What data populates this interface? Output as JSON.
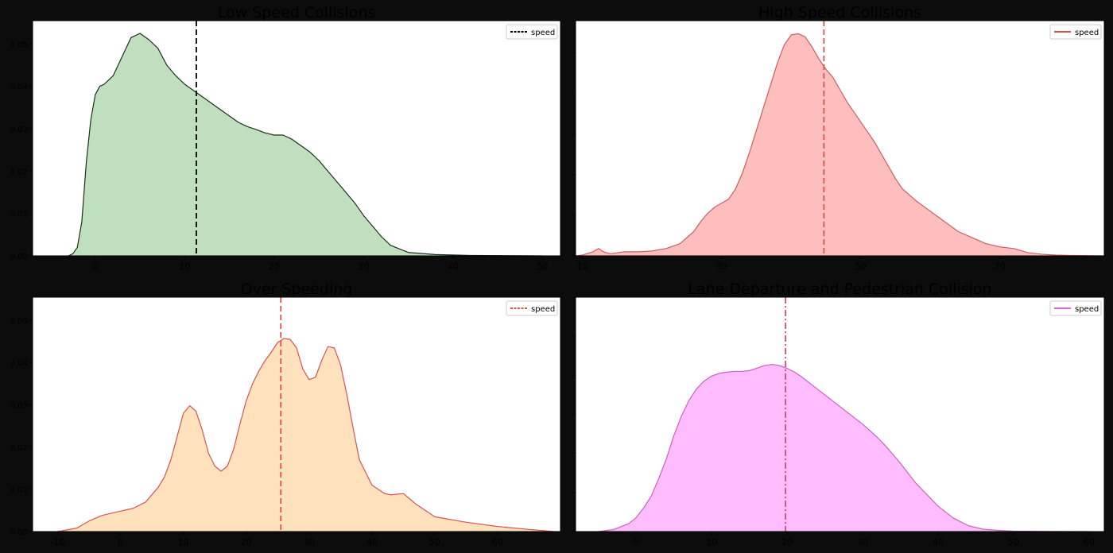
{
  "figure": {
    "background": "#0b0c0b",
    "text_color": "#000000"
  },
  "chart_data": [
    {
      "type": "area",
      "title": "Low Speed Collisions",
      "xlabel": "",
      "ylabel": "",
      "xlim": [
        -7,
        52
      ],
      "ylim": [
        0,
        0.0555
      ],
      "xticks": [
        0,
        10,
        20,
        30,
        40,
        50
      ],
      "yticks": [
        0.0,
        0.01,
        0.02,
        0.03,
        0.04,
        0.05
      ],
      "ytick_labels": [
        "0.00",
        "0.01",
        "0.02",
        "0.03",
        "0.04",
        "0.05"
      ],
      "grid": false,
      "legend": {
        "position": "top-right",
        "entries": [
          {
            "label": "speed",
            "style": "dashed",
            "color": "#000000"
          }
        ]
      },
      "vline": {
        "x": 11.3,
        "color": "#000000",
        "style": "dashed"
      },
      "fill_color": "#bfdfbf",
      "line_color": "#1d2e1d",
      "series": [
        {
          "x": [
            -3,
            -2.5,
            -2,
            -1.5,
            -1,
            -0.5,
            0,
            0.5,
            1,
            2,
            3,
            4,
            5,
            6,
            7,
            8,
            9,
            10,
            11,
            12,
            13,
            14,
            15,
            16,
            17,
            18,
            19,
            20,
            21,
            22,
            23,
            24,
            25,
            26,
            27,
            28,
            29,
            30,
            31,
            32,
            33,
            35,
            38,
            42,
            46,
            50
          ],
          "y": [
            0,
            0.0005,
            0.002,
            0.008,
            0.022,
            0.032,
            0.038,
            0.04,
            0.0405,
            0.0425,
            0.047,
            0.0515,
            0.0525,
            0.051,
            0.049,
            0.045,
            0.0425,
            0.0405,
            0.039,
            0.0375,
            0.036,
            0.0345,
            0.033,
            0.0315,
            0.0305,
            0.0298,
            0.029,
            0.0285,
            0.0285,
            0.0275,
            0.026,
            0.0245,
            0.0225,
            0.02,
            0.0175,
            0.015,
            0.0125,
            0.0095,
            0.007,
            0.0045,
            0.0025,
            0.0008,
            0.0003,
            0.0001,
            5e-05,
            0
          ]
        }
      ]
    },
    {
      "type": "area",
      "title": "High Speed Collisions",
      "xlabel": "",
      "ylabel": "",
      "xlim": [
        9,
        85
      ],
      "ylim": [
        0,
        0.058
      ],
      "xticks": [
        10,
        30,
        50,
        70,
        90
      ],
      "yticks": [
        0.0,
        0.01,
        0.02,
        0.03,
        0.04,
        0.05
      ],
      "ytick_labels": [
        "",
        "",
        "",
        "",
        "",
        ""
      ],
      "grid": false,
      "legend": {
        "position": "top-right",
        "entries": [
          {
            "label": "speed",
            "style": "solid",
            "color": "#d9534f"
          }
        ]
      },
      "vline": {
        "x": 44.7,
        "color": "#d9534f",
        "style": "dashed"
      },
      "fill_color": "#ffbebe",
      "line_color": "#cc5f5f",
      "series": [
        {
          "x": [
            9,
            10,
            11.5,
            12.3,
            13,
            14,
            16,
            18,
            20,
            22,
            24,
            26,
            27,
            28,
            29,
            30,
            31,
            32,
            33,
            34,
            35,
            36,
            37,
            38,
            39,
            40,
            41,
            42,
            43,
            44,
            45,
            46,
            47,
            48,
            49,
            50,
            51,
            52,
            53,
            54,
            55,
            56,
            58,
            60,
            62,
            64,
            66,
            68,
            70,
            72,
            74,
            76,
            78,
            80,
            85
          ],
          "y": [
            0,
            0.0002,
            0.001,
            0.0018,
            0.001,
            0.0005,
            0.001,
            0.001,
            0.0012,
            0.0018,
            0.003,
            0.006,
            0.0085,
            0.0105,
            0.012,
            0.013,
            0.014,
            0.0165,
            0.0205,
            0.0255,
            0.031,
            0.0365,
            0.042,
            0.0475,
            0.052,
            0.0545,
            0.0548,
            0.054,
            0.0515,
            0.0485,
            0.046,
            0.044,
            0.041,
            0.038,
            0.0355,
            0.033,
            0.0305,
            0.028,
            0.025,
            0.022,
            0.019,
            0.0165,
            0.0135,
            0.011,
            0.0085,
            0.006,
            0.0045,
            0.003,
            0.0022,
            0.0018,
            0.0008,
            0.0004,
            0.0002,
            0.0001,
            0
          ]
        }
      ]
    },
    {
      "type": "area",
      "title": "Over Speeding",
      "xlabel": "",
      "ylabel": "",
      "xlim": [
        -14,
        70
      ],
      "ylim": [
        0,
        0.0555
      ],
      "xticks": [
        -10,
        0,
        10,
        20,
        30,
        40,
        50,
        60
      ],
      "yticks": [
        0.0,
        0.01,
        0.02,
        0.03,
        0.04,
        0.05
      ],
      "ytick_labels": [
        "0.00",
        "0.01",
        "0.02",
        "0.03",
        "0.04",
        "0.05"
      ],
      "grid": false,
      "legend": {
        "position": "top-right",
        "entries": [
          {
            "label": "speed",
            "style": "dashed",
            "color": "#d9534f"
          }
        ]
      },
      "vline": {
        "x": 25.5,
        "color": "#d9534f",
        "style": "dashed"
      },
      "fill_color": "#ffe2bd",
      "line_color": "#d9534f",
      "series": [
        {
          "x": [
            -10,
            -7,
            -5,
            -3,
            -1,
            2,
            4,
            6,
            7,
            8,
            9,
            10,
            11,
            12,
            13,
            14,
            15,
            16,
            17,
            18,
            19,
            20,
            21,
            22,
            23,
            24,
            25,
            26,
            27,
            28,
            29,
            30,
            31,
            32,
            33,
            34,
            35,
            36,
            37,
            38,
            40,
            42,
            43,
            45,
            47,
            50,
            55,
            60,
            65,
            69
          ],
          "y": [
            0,
            0.0008,
            0.0025,
            0.0038,
            0.0045,
            0.0055,
            0.007,
            0.0105,
            0.013,
            0.017,
            0.0225,
            0.028,
            0.0298,
            0.0285,
            0.024,
            0.0185,
            0.0155,
            0.0143,
            0.0155,
            0.0195,
            0.0255,
            0.031,
            0.035,
            0.038,
            0.0405,
            0.0425,
            0.0448,
            0.0457,
            0.0455,
            0.0435,
            0.0385,
            0.036,
            0.0365,
            0.0405,
            0.0438,
            0.0435,
            0.0395,
            0.0325,
            0.0245,
            0.017,
            0.011,
            0.009,
            0.0087,
            0.009,
            0.0065,
            0.0035,
            0.0022,
            0.0012,
            0.0005,
            0
          ]
        }
      ]
    },
    {
      "type": "area",
      "title": "Lane Departure and Pedestrian Collision",
      "xlabel": "",
      "ylabel": "",
      "xlim": [
        -8,
        62
      ],
      "ylim": [
        0,
        0.06
      ],
      "xticks": [
        0,
        10,
        20,
        30,
        40,
        50,
        60
      ],
      "yticks": [
        0.0,
        0.01,
        0.02,
        0.03,
        0.04,
        0.05
      ],
      "ytick_labels": [
        "",
        "",
        "",
        "",
        "",
        ""
      ],
      "grid": false,
      "legend": {
        "position": "top-right",
        "entries": [
          {
            "label": "speed",
            "style": "solid",
            "color": "#e066e0"
          }
        ]
      },
      "vline": {
        "x": 19.8,
        "color": "#d94f6f",
        "style": "dashdot"
      },
      "fill_color": "#ffbdff",
      "line_color": "#cc5fc0",
      "series": [
        {
          "x": [
            -5,
            -3,
            -1,
            0,
            1,
            2,
            3,
            4,
            5,
            6,
            7,
            8,
            9,
            10,
            11,
            12,
            13,
            14,
            15,
            16,
            17,
            18,
            19,
            20,
            21,
            22,
            23,
            24,
            25,
            26,
            27,
            28,
            29,
            30,
            31,
            32,
            33,
            34,
            35,
            36,
            37,
            38,
            39,
            40,
            42,
            44,
            46,
            48,
            50,
            55,
            60
          ],
          "y": [
            0,
            0.0005,
            0.002,
            0.0035,
            0.006,
            0.009,
            0.0135,
            0.0185,
            0.0245,
            0.0295,
            0.0335,
            0.0365,
            0.0385,
            0.0398,
            0.0405,
            0.0408,
            0.041,
            0.041,
            0.0412,
            0.0418,
            0.0425,
            0.0428,
            0.0425,
            0.0418,
            0.0408,
            0.0395,
            0.038,
            0.0365,
            0.035,
            0.0335,
            0.032,
            0.0305,
            0.029,
            0.0275,
            0.0258,
            0.024,
            0.022,
            0.0198,
            0.0175,
            0.015,
            0.0125,
            0.0105,
            0.0085,
            0.0065,
            0.0035,
            0.0015,
            0.0006,
            0.0003,
            0.0001,
            2e-05,
            0
          ]
        }
      ]
    }
  ]
}
